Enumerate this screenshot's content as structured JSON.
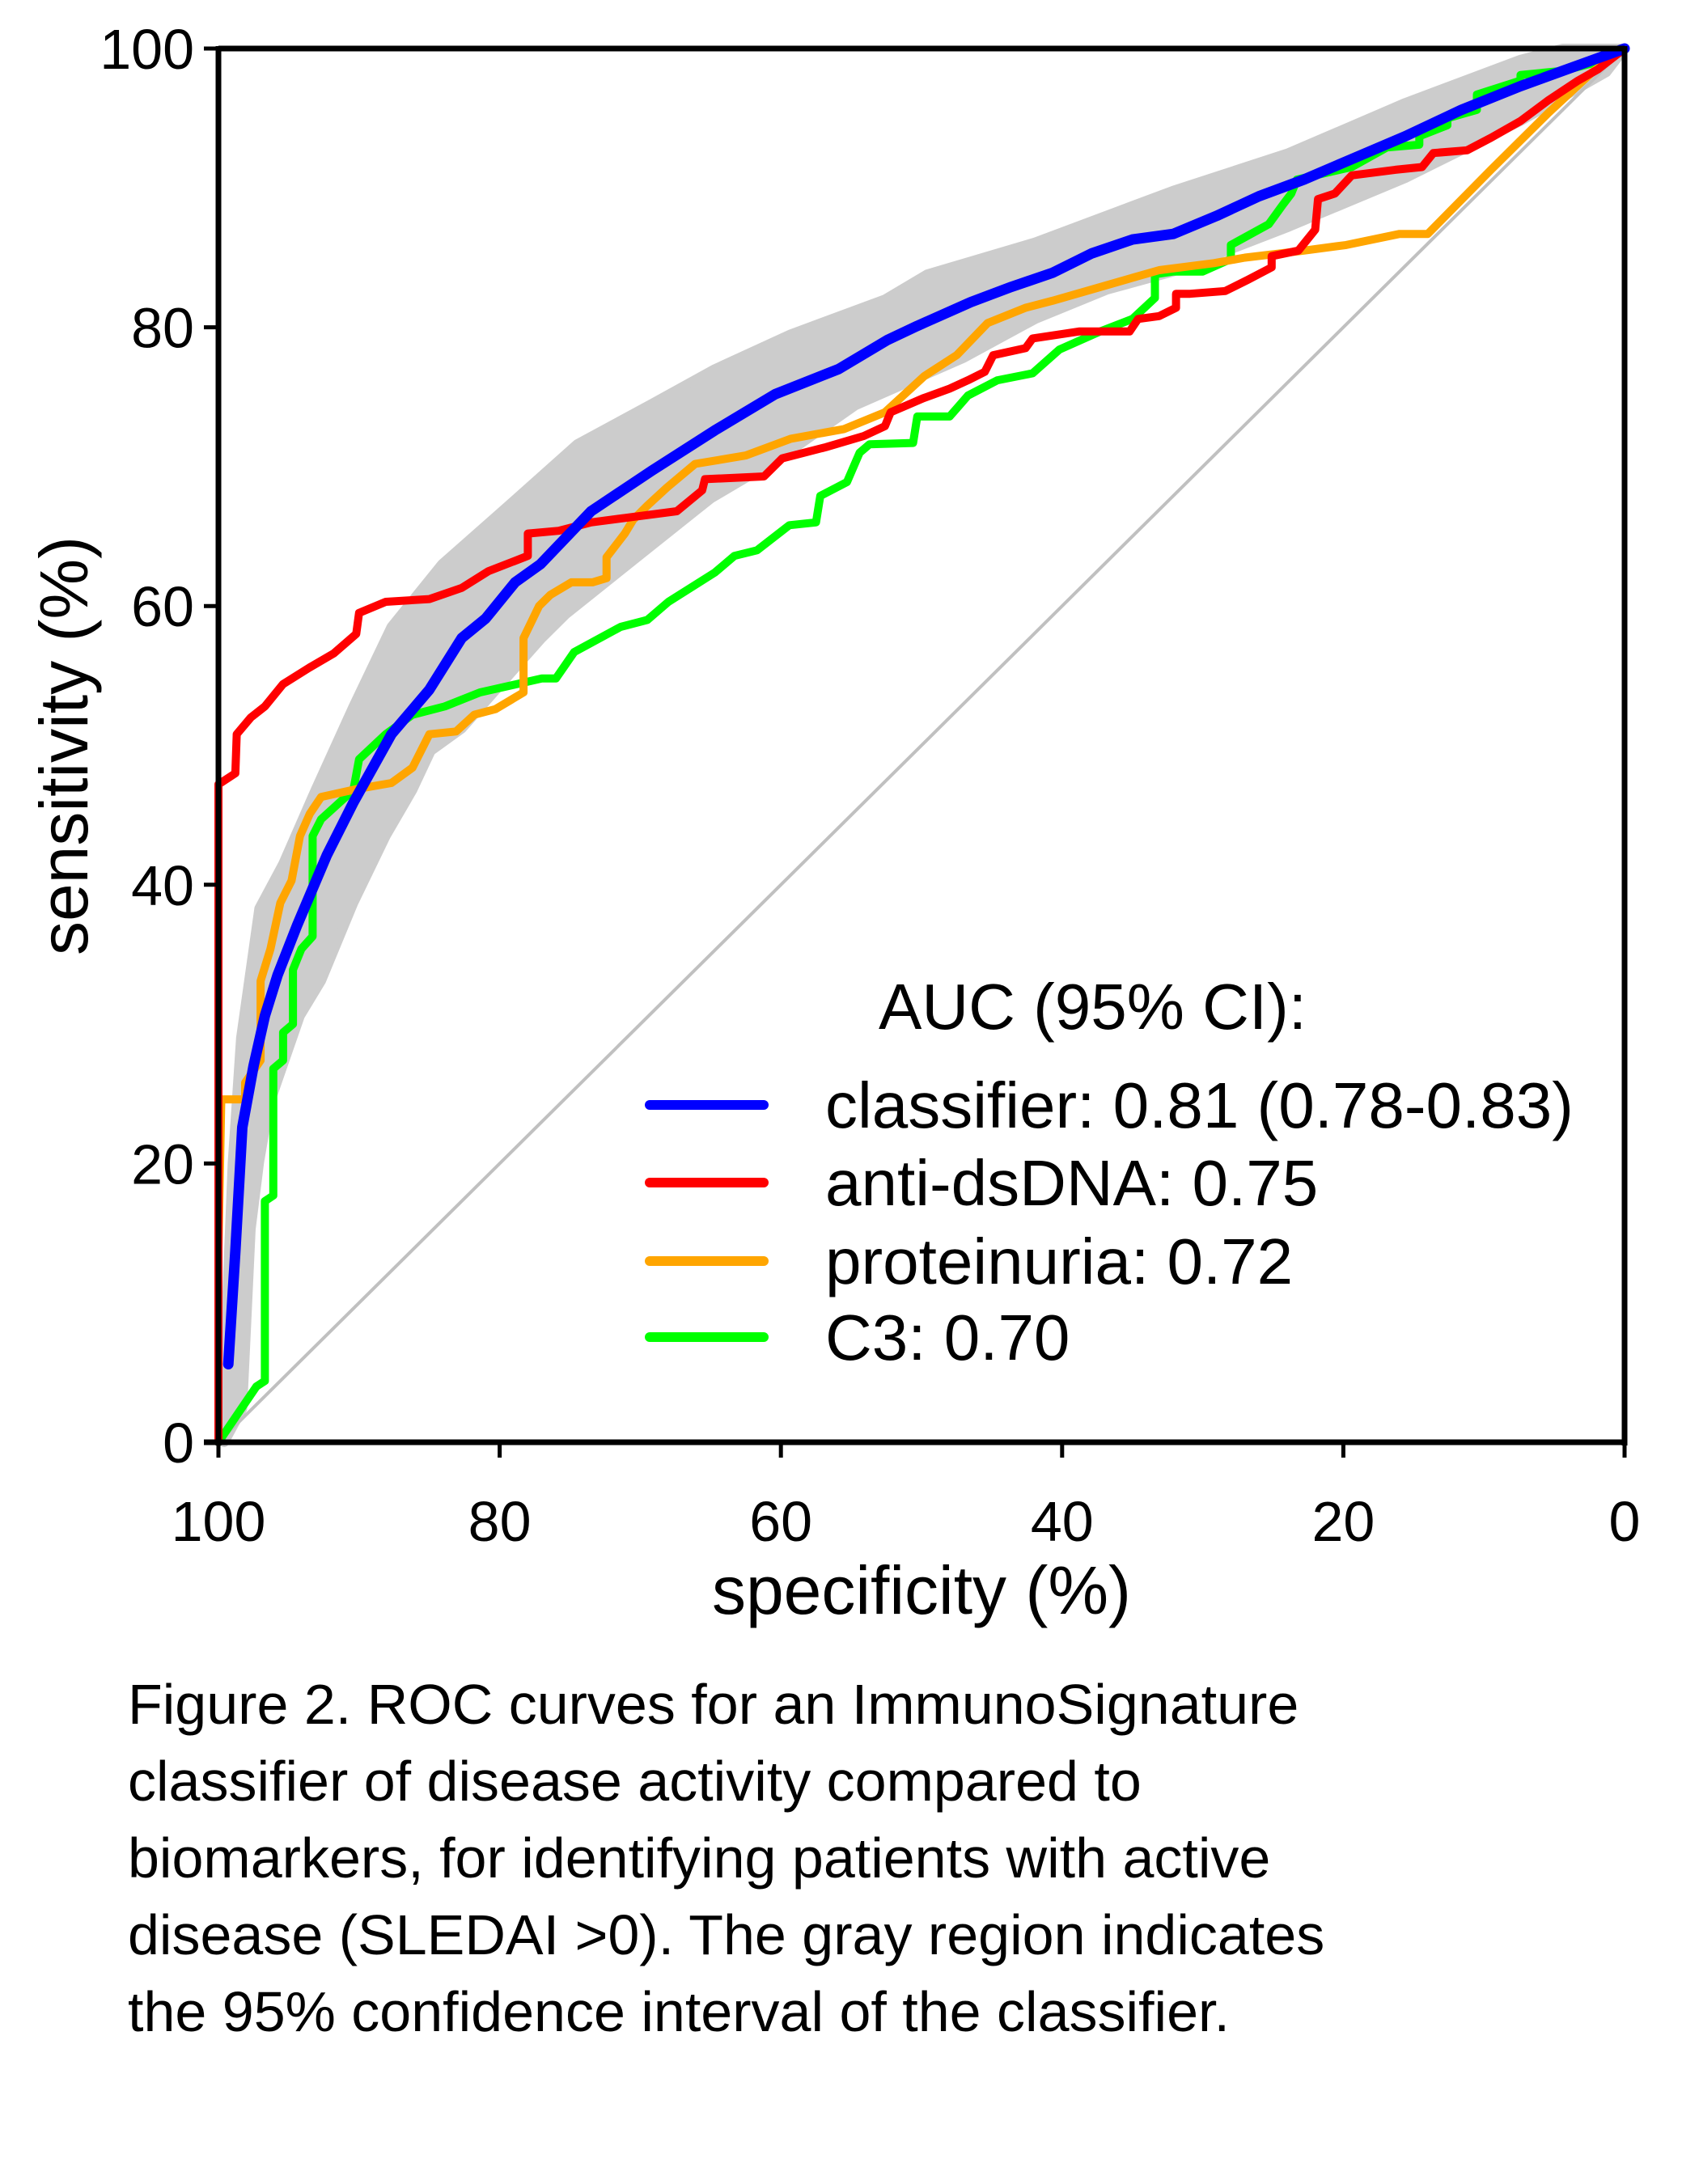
{
  "chart_data": {
    "type": "line",
    "title": "",
    "xlabel": "specificity (%)",
    "ylabel": "sensitivity (%)",
    "xlim": [
      100,
      0
    ],
    "ylim": [
      0,
      100
    ],
    "x_reversed": true,
    "grid": false,
    "x_ticks": [
      100,
      80,
      60,
      40,
      20,
      0
    ],
    "y_ticks": [
      0,
      20,
      40,
      60,
      80,
      100
    ],
    "x_tick_labels": [
      "100",
      "80",
      "60",
      "40",
      "20",
      "0"
    ],
    "y_tick_labels": [
      "0",
      "20",
      "40",
      "60",
      "80",
      "100"
    ],
    "legend": {
      "title": "AUC (95% CI):",
      "placement": "bottom-right",
      "entries": [
        {
          "label": "classifier: 0.81 (0.78-0.83)",
          "series": "classifier"
        },
        {
          "label": "anti-dsDNA: 0.75",
          "series": "anti-dsDNA"
        },
        {
          "label": "proteinuria: 0.72",
          "series": "proteinuria"
        },
        {
          "label": "C3: 0.70",
          "series": "C3"
        }
      ]
    },
    "reference_line": {
      "name": "chance",
      "color": "#c0c0c0",
      "points": [
        [
          100,
          0
        ],
        [
          0,
          100
        ]
      ]
    },
    "confidence_band": {
      "name": "classifier 95% CI",
      "color": "#cccccc",
      "upper": [
        [
          99.6,
          0
        ],
        [
          99.6,
          5
        ],
        [
          99,
          20
        ],
        [
          98.4,
          29
        ],
        [
          97.1,
          38.3
        ],
        [
          95.4,
          41.5
        ],
        [
          93.1,
          46.8
        ],
        [
          90.4,
          52.8
        ],
        [
          87.7,
          58.5
        ],
        [
          84.1,
          63
        ],
        [
          79.5,
          67.1
        ],
        [
          74.5,
          71.6
        ],
        [
          69.2,
          74.5
        ],
        [
          64.7,
          77
        ],
        [
          59.3,
          79.5
        ],
        [
          52.6,
          82
        ],
        [
          49.6,
          83.8
        ],
        [
          41.9,
          86.1
        ],
        [
          32.1,
          89.8
        ],
        [
          23.9,
          92.5
        ],
        [
          15.6,
          96.1
        ],
        [
          7.4,
          99.2
        ],
        [
          4.4,
          100
        ],
        [
          0,
          100
        ]
      ],
      "lower": [
        [
          98.3,
          2.4
        ],
        [
          97.7,
          15.3
        ],
        [
          97.1,
          20.1
        ],
        [
          96.4,
          24.2
        ],
        [
          94.2,
          30.6
        ],
        [
          92.7,
          33.1
        ],
        [
          90.4,
          38.7
        ],
        [
          88.1,
          43.5
        ],
        [
          86.2,
          46.8
        ],
        [
          84.9,
          49.6
        ],
        [
          82.7,
          51.2
        ],
        [
          79.9,
          54.4
        ],
        [
          77,
          57.7
        ],
        [
          75.3,
          59.4
        ],
        [
          70.1,
          63.6
        ],
        [
          65,
          67.7
        ],
        [
          59.8,
          70.8
        ],
        [
          54.7,
          74.4
        ],
        [
          47,
          77.8
        ],
        [
          41.9,
          80.6
        ],
        [
          36.8,
          82.7
        ],
        [
          32.1,
          84
        ],
        [
          23.9,
          87.2
        ],
        [
          15.6,
          90.7
        ],
        [
          7.4,
          94.8
        ],
        [
          1.3,
          98.3
        ],
        [
          0,
          100
        ]
      ]
    },
    "series": [
      {
        "name": "classifier",
        "auc": 0.81,
        "ci": [
          0.78,
          0.83
        ],
        "color": "#0000ff",
        "points": [
          [
            99.3,
            5.6
          ],
          [
            98.8,
            13.7
          ],
          [
            98.3,
            22.6
          ],
          [
            97.5,
            27
          ],
          [
            96.7,
            30.6
          ],
          [
            95.8,
            33.5
          ],
          [
            94.4,
            37.1
          ],
          [
            92.3,
            42.1
          ],
          [
            90.4,
            45.9
          ],
          [
            87.7,
            50.8
          ],
          [
            85,
            54
          ],
          [
            82.7,
            57.7
          ],
          [
            81,
            59.1
          ],
          [
            78.9,
            61.7
          ],
          [
            77.1,
            63
          ],
          [
            73.5,
            66.8
          ],
          [
            69.2,
            69.7
          ],
          [
            64.7,
            72.6
          ],
          [
            60.4,
            75.2
          ],
          [
            55.9,
            77
          ],
          [
            52.4,
            79.1
          ],
          [
            50.3,
            80.1
          ],
          [
            46.5,
            81.8
          ],
          [
            43.6,
            82.9
          ],
          [
            40.7,
            83.9
          ],
          [
            37.9,
            85.3
          ],
          [
            35,
            86.3
          ],
          [
            32.1,
            86.7
          ],
          [
            29,
            88
          ],
          [
            26,
            89.4
          ],
          [
            22.8,
            90.6
          ],
          [
            19.8,
            91.9
          ],
          [
            15.6,
            93.7
          ],
          [
            11.6,
            95.6
          ],
          [
            7.4,
            97.3
          ],
          [
            3.3,
            98.8
          ],
          [
            0,
            100
          ]
        ]
      },
      {
        "name": "anti-dsDNA",
        "auc": 0.75,
        "color": "#ff0000",
        "points": [
          [
            100,
            0
          ],
          [
            100,
            47.2
          ],
          [
            98.8,
            48
          ],
          [
            98.7,
            50.8
          ],
          [
            97.7,
            52
          ],
          [
            96.7,
            52.8
          ],
          [
            95.4,
            54.4
          ],
          [
            93.5,
            55.6
          ],
          [
            91.8,
            56.6
          ],
          [
            90.2,
            58
          ],
          [
            90,
            59.5
          ],
          [
            88.1,
            60.3
          ],
          [
            85,
            60.5
          ],
          [
            82.7,
            61.3
          ],
          [
            80.8,
            62.5
          ],
          [
            78,
            63.6
          ],
          [
            78,
            65.2
          ],
          [
            75.8,
            65.4
          ],
          [
            73.5,
            66
          ],
          [
            67.4,
            66.8
          ],
          [
            65.6,
            68.3
          ],
          [
            65.4,
            69.1
          ],
          [
            61.2,
            69.3
          ],
          [
            59.9,
            70.6
          ],
          [
            56.8,
            71.4
          ],
          [
            54.1,
            72.2
          ],
          [
            52.6,
            72.9
          ],
          [
            52.2,
            73.9
          ],
          [
            49.9,
            74.9
          ],
          [
            48,
            75.6
          ],
          [
            46.7,
            76.2
          ],
          [
            45.5,
            76.8
          ],
          [
            44.9,
            78
          ],
          [
            42.6,
            78.5
          ],
          [
            42.1,
            79.2
          ],
          [
            38.8,
            79.7
          ],
          [
            35.2,
            79.7
          ],
          [
            34.6,
            80.6
          ],
          [
            33.1,
            80.8
          ],
          [
            31.9,
            81.4
          ],
          [
            31.9,
            82.4
          ],
          [
            30.9,
            82.4
          ],
          [
            28.4,
            82.6
          ],
          [
            26.8,
            83.4
          ],
          [
            25.1,
            84.3
          ],
          [
            25.1,
            85.1
          ],
          [
            23.2,
            85.5
          ],
          [
            22,
            87
          ],
          [
            21.8,
            89.2
          ],
          [
            20.6,
            89.6
          ],
          [
            19.4,
            90.9
          ],
          [
            16.3,
            91.3
          ],
          [
            14.4,
            91.5
          ],
          [
            13.6,
            92.5
          ],
          [
            11.2,
            92.7
          ],
          [
            9.5,
            93.6
          ],
          [
            7.4,
            94.8
          ],
          [
            5.4,
            96.3
          ],
          [
            3.3,
            97.7
          ],
          [
            1.9,
            98.5
          ],
          [
            0,
            100
          ]
        ]
      },
      {
        "name": "proteinuria",
        "auc": 0.72,
        "color": "#ffa500",
        "points": [
          [
            100,
            0
          ],
          [
            100,
            13.9
          ],
          [
            99.8,
            24.6
          ],
          [
            98.1,
            24.6
          ],
          [
            98.1,
            25.8
          ],
          [
            97,
            27.4
          ],
          [
            97,
            33.1
          ],
          [
            96.3,
            35.4
          ],
          [
            95.6,
            38.7
          ],
          [
            94.8,
            40.3
          ],
          [
            94.2,
            43.5
          ],
          [
            93.5,
            45.1
          ],
          [
            92.7,
            46.3
          ],
          [
            90,
            46.9
          ],
          [
            87.7,
            47.3
          ],
          [
            86.2,
            48.4
          ],
          [
            85,
            50.8
          ],
          [
            83.1,
            51
          ],
          [
            81.8,
            52.2
          ],
          [
            80.3,
            52.6
          ],
          [
            78.3,
            53.8
          ],
          [
            78.3,
            57.7
          ],
          [
            77.2,
            60
          ],
          [
            76.4,
            60.8
          ],
          [
            74.9,
            61.7
          ],
          [
            73.4,
            61.7
          ],
          [
            72.4,
            62
          ],
          [
            72.4,
            63.5
          ],
          [
            71.1,
            65.2
          ],
          [
            70.5,
            66.2
          ],
          [
            69.5,
            67.2
          ],
          [
            68.1,
            68.5
          ],
          [
            66.1,
            70.2
          ],
          [
            62.5,
            70.8
          ],
          [
            59.3,
            72
          ],
          [
            55.5,
            72.7
          ],
          [
            52.6,
            73.9
          ],
          [
            49.8,
            76.5
          ],
          [
            47.5,
            78
          ],
          [
            45.3,
            80.3
          ],
          [
            42.6,
            81.4
          ],
          [
            40.7,
            81.9
          ],
          [
            36.9,
            83
          ],
          [
            33.1,
            84.1
          ],
          [
            29.2,
            84.6
          ],
          [
            27,
            85
          ],
          [
            22.8,
            85.5
          ],
          [
            19.8,
            85.9
          ],
          [
            16,
            86.7
          ],
          [
            14,
            86.7
          ],
          [
            9.5,
            91.3
          ],
          [
            5.4,
            95.4
          ],
          [
            2.3,
            98.3
          ],
          [
            0,
            100
          ]
        ]
      },
      {
        "name": "C3",
        "auc": 0.7,
        "color": "#00ff00",
        "points": [
          [
            100,
            0
          ],
          [
            97.3,
            4
          ],
          [
            96.7,
            4.4
          ],
          [
            96.7,
            17.3
          ],
          [
            96.1,
            17.7
          ],
          [
            96.1,
            26.8
          ],
          [
            95.4,
            27.4
          ],
          [
            95.4,
            29.4
          ],
          [
            94.7,
            30
          ],
          [
            94.7,
            33.9
          ],
          [
            94.1,
            35.4
          ],
          [
            93.3,
            36.3
          ],
          [
            93.3,
            43.5
          ],
          [
            92.7,
            44.7
          ],
          [
            90.4,
            46.8
          ],
          [
            90,
            49
          ],
          [
            88.1,
            50.8
          ],
          [
            86.2,
            52.2
          ],
          [
            83.9,
            52.8
          ],
          [
            81.4,
            53.8
          ],
          [
            77,
            54.8
          ],
          [
            76,
            54.8
          ],
          [
            74.7,
            56.7
          ],
          [
            71.4,
            58.5
          ],
          [
            69.5,
            59
          ],
          [
            68,
            60.3
          ],
          [
            64.7,
            62.4
          ],
          [
            63.3,
            63.6
          ],
          [
            61.7,
            64
          ],
          [
            59.4,
            65.8
          ],
          [
            57.5,
            66
          ],
          [
            57.2,
            67.9
          ],
          [
            55.3,
            68.9
          ],
          [
            54.4,
            71
          ],
          [
            53.7,
            71.6
          ],
          [
            50.6,
            71.7
          ],
          [
            50.3,
            73.6
          ],
          [
            48,
            73.6
          ],
          [
            46.7,
            75.1
          ],
          [
            44.6,
            76.2
          ],
          [
            42.1,
            76.7
          ],
          [
            40.2,
            78.4
          ],
          [
            37.3,
            79.7
          ],
          [
            35,
            80.6
          ],
          [
            33.4,
            82.1
          ],
          [
            33.4,
            83.8
          ],
          [
            32.1,
            84
          ],
          [
            30,
            84
          ],
          [
            28,
            84.9
          ],
          [
            28,
            85.9
          ],
          [
            25.3,
            87.4
          ],
          [
            24.3,
            88.8
          ],
          [
            23.7,
            89.6
          ],
          [
            23.3,
            90.6
          ],
          [
            19.4,
            91.5
          ],
          [
            16.9,
            92.9
          ],
          [
            14.6,
            93.1
          ],
          [
            14.6,
            93.7
          ],
          [
            12.6,
            94.5
          ],
          [
            12.6,
            95
          ],
          [
            10.5,
            95.6
          ],
          [
            10.5,
            96.7
          ],
          [
            7.4,
            97.7
          ],
          [
            7.4,
            98.1
          ],
          [
            4.4,
            98.4
          ],
          [
            1.3,
            99.2
          ],
          [
            0,
            100
          ]
        ]
      }
    ]
  },
  "caption": {
    "lines": [
      "Figure 2. ROC curves for an ImmunoSignature",
      "classifier of disease activity compared to",
      "biomarkers, for identifying patients with active",
      "disease (SLEDAI >0). The gray region indicates",
      "the 95% confidence interval of the classifier."
    ]
  }
}
